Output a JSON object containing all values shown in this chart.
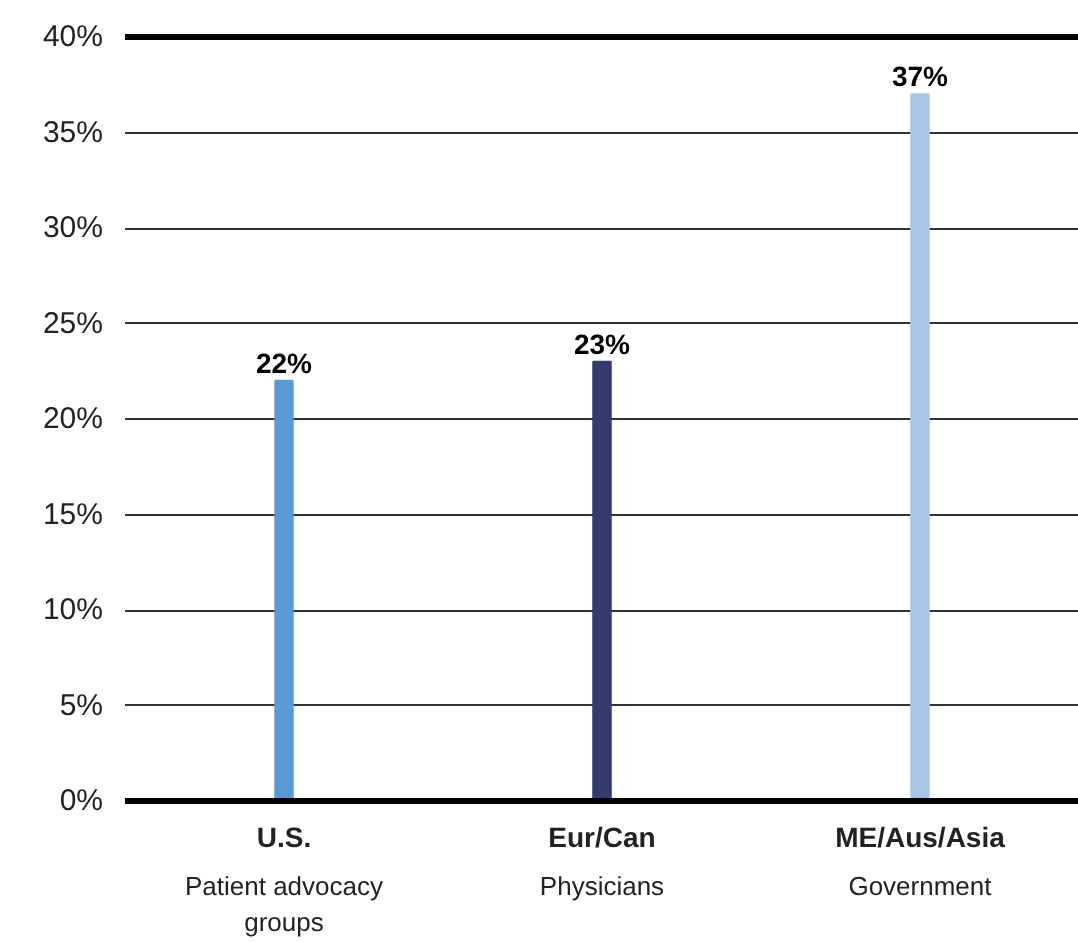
{
  "chart_data": {
    "type": "bar",
    "categories": [
      "U.S.\nPatient advocacy\ngroups",
      "Eur/Can\nPhysicians",
      "ME/Aus/Asia\nGovernment"
    ],
    "values": [
      22,
      23,
      37
    ],
    "colors": [
      "#5b9bd5",
      "#343a6b",
      "#a9c6e8"
    ],
    "value_labels": [
      "22%",
      "23%",
      "37%"
    ],
    "ylim": [
      0,
      40
    ],
    "yticks": [
      {
        "value": 0,
        "label": "0%"
      },
      {
        "value": 5,
        "label": "5%"
      },
      {
        "value": 10,
        "label": "10%"
      },
      {
        "value": 15,
        "label": "15%"
      },
      {
        "value": 20,
        "label": "20%"
      },
      {
        "value": 25,
        "label": "25%"
      },
      {
        "value": 30,
        "label": "30%"
      },
      {
        "value": 35,
        "label": "35%"
      },
      {
        "value": 40,
        "label": "40%"
      }
    ],
    "grid": "y"
  }
}
